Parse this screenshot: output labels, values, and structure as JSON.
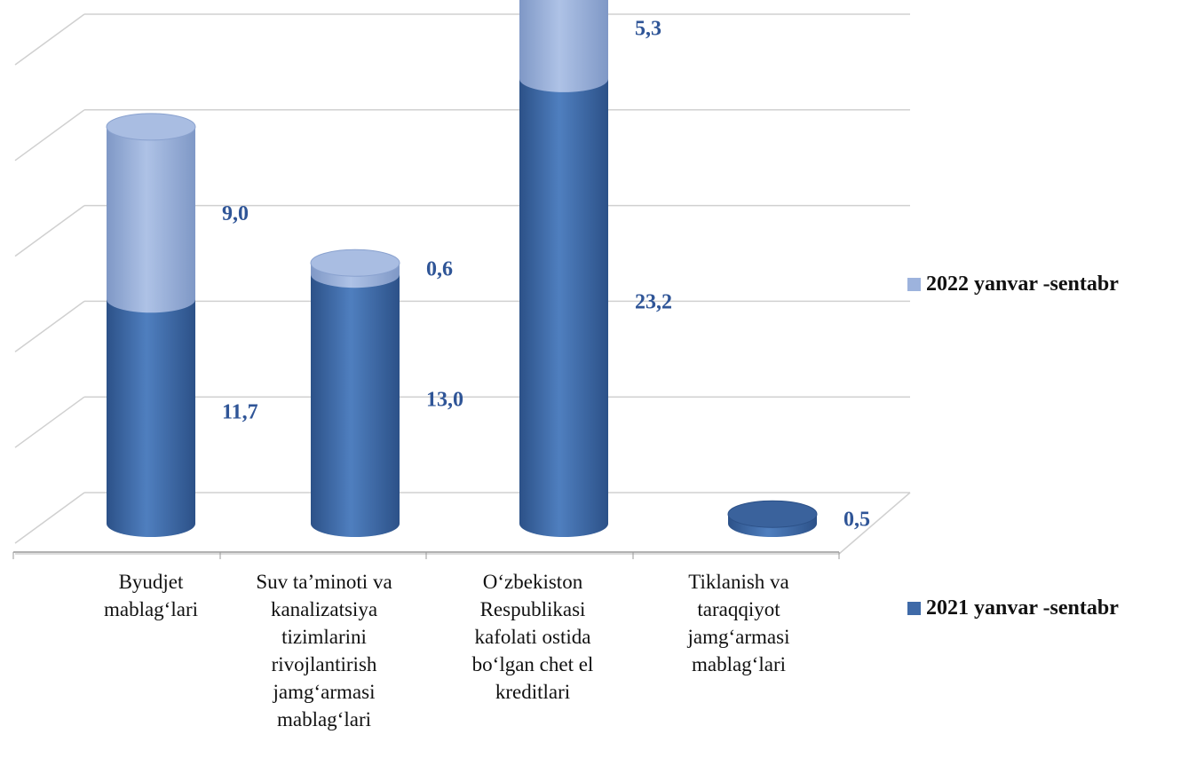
{
  "chart_data": {
    "type": "bar3d-stacked",
    "categories": [
      "Byudjet mablag‘lari",
      "Suv ta’minoti va kanalizatsiya tizimlarini rivojlantirish jamg‘armasi mablag‘lari",
      "O‘zbekiston Respublikasi kafolati ostida bo‘lgan chet el kreditlari",
      "Tiklanish va taraqqiyot jamg‘armasi mablag‘lari"
    ],
    "series": [
      {
        "name": "2021 yanvar -sentabr",
        "color": "#3f6aa8",
        "values": [
          11.7,
          13.0,
          23.2,
          0.5
        ],
        "value_labels": [
          "11,7",
          "13,0",
          "23,2",
          "0,5"
        ]
      },
      {
        "name": "2022 yanvar -sentabr",
        "color": "#9db3dd",
        "values": [
          9.0,
          0.6,
          5.3,
          null
        ],
        "value_labels": [
          "9,0",
          "0,6",
          "5,3",
          null
        ]
      }
    ],
    "ylim": [
      0,
      25
    ],
    "yticks": [
      0,
      5,
      10,
      15,
      20,
      25
    ],
    "grid": true,
    "legend": "right"
  }
}
